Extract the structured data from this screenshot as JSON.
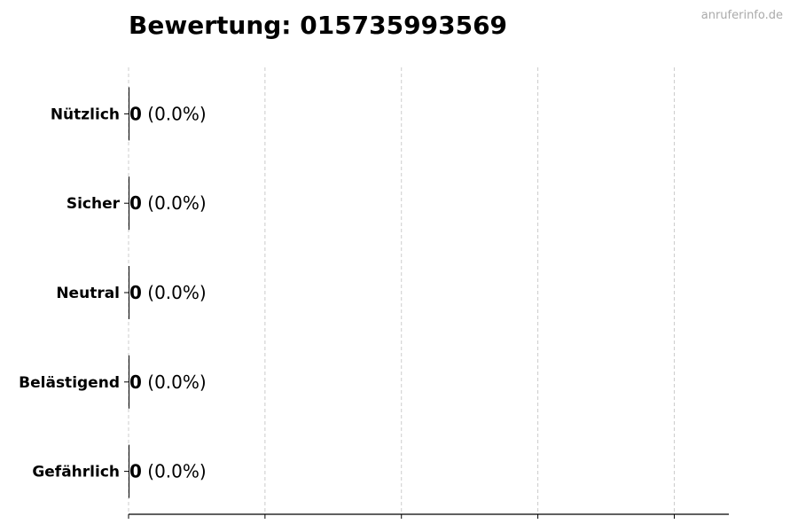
{
  "header": {
    "title": "Bewertung: 015735993569",
    "watermark": "anruferinfo.de"
  },
  "chart_data": {
    "type": "bar",
    "orientation": "horizontal",
    "title": "Bewertung: 015735993569",
    "categories": [
      "Nützlich",
      "Sicher",
      "Neutral",
      "Belästigend",
      "Gefährlich"
    ],
    "values": [
      0,
      0,
      0,
      0,
      0
    ],
    "percent_labels": [
      "(0.0%)",
      "(0.0%)",
      "(0.0%)",
      "(0.0%)",
      "(0.0%)"
    ],
    "xlim": [
      0,
      4.4
    ],
    "grid": "x-dashed",
    "bar_color": "#000000",
    "xtick_labels": false
  }
}
